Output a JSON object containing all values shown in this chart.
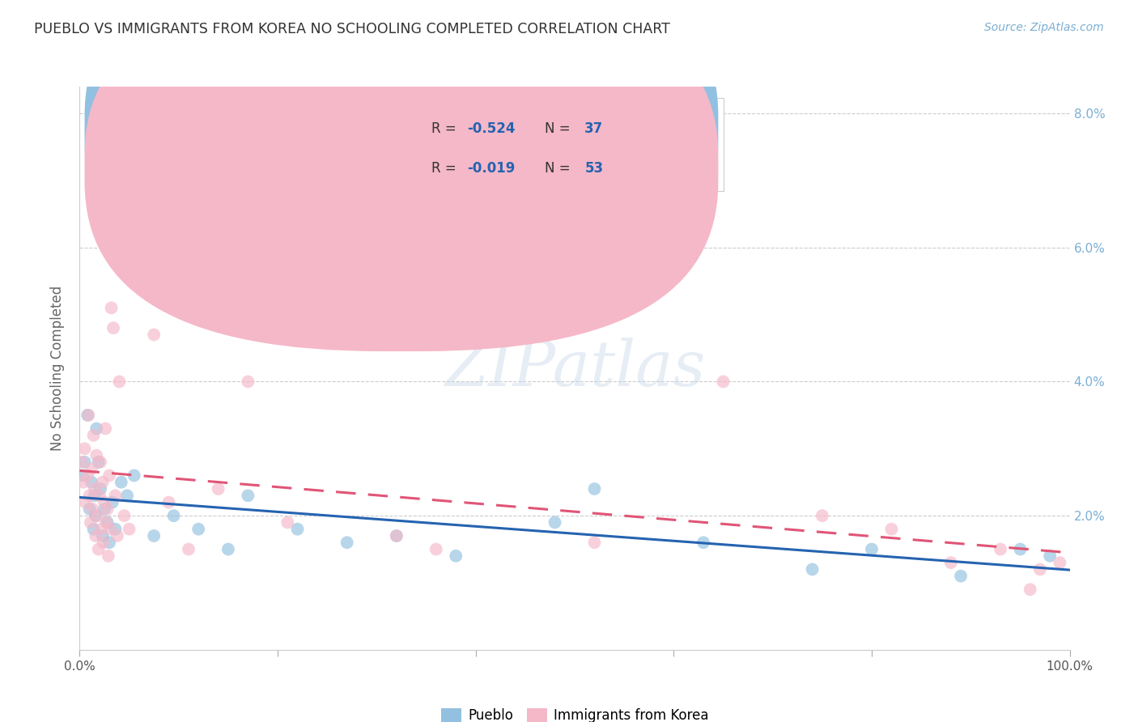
{
  "title": "PUEBLO VS IMMIGRANTS FROM KOREA NO SCHOOLING COMPLETED CORRELATION CHART",
  "source": "Source: ZipAtlas.com",
  "ylabel": "No Schooling Completed",
  "xlim": [
    0,
    100
  ],
  "ylim": [
    0,
    8.4
  ],
  "yticks": [
    2,
    4,
    6,
    8
  ],
  "ytick_labels_right": [
    "2.0%",
    "4.0%",
    "6.0%",
    "8.0%"
  ],
  "xticks": [
    0,
    20,
    40,
    60,
    80,
    100
  ],
  "xtick_labels": [
    "0.0%",
    "",
    "",
    "",
    "",
    "100.0%"
  ],
  "pueblo_R": "-0.524",
  "pueblo_N": "37",
  "korea_R": "-0.019",
  "korea_N": "53",
  "pueblo_color": "#92c0e0",
  "korea_color": "#f5b8c8",
  "pueblo_line_color": "#2563b0",
  "korea_line_color": "#e05575",
  "grid_color": "#cccccc",
  "bg_color": "#ffffff",
  "watermark_text": "ZIPatlas",
  "legend_label_color": "#333333",
  "legend_value_color": "#2563b0",
  "title_color": "#333333",
  "source_color": "#7bafd4",
  "ylabel_color": "#666666",
  "tick_label_color": "#555555",
  "right_tick_color": "#7bafd4",
  "pueblo_x": [
    0.3,
    0.5,
    0.8,
    1.0,
    1.2,
    1.4,
    1.5,
    1.6,
    1.7,
    1.9,
    2.1,
    2.3,
    2.5,
    2.8,
    3.0,
    3.3,
    3.6,
    4.2,
    4.8,
    5.5,
    7.5,
    9.5,
    12.0,
    15.0,
    17.0,
    22.0,
    27.0,
    32.0,
    38.0,
    48.0,
    52.0,
    63.0,
    74.0,
    80.0,
    89.0,
    95.0,
    98.0
  ],
  "pueblo_y": [
    2.6,
    2.8,
    3.5,
    2.1,
    2.5,
    1.8,
    2.3,
    2.0,
    3.3,
    2.8,
    2.4,
    1.7,
    2.1,
    1.9,
    1.6,
    2.2,
    1.8,
    2.5,
    2.3,
    2.6,
    1.7,
    2.0,
    1.8,
    1.5,
    2.3,
    1.8,
    1.6,
    1.7,
    1.4,
    1.9,
    2.4,
    1.6,
    1.2,
    1.5,
    1.1,
    1.5,
    1.4
  ],
  "korea_x": [
    0.2,
    0.4,
    0.5,
    0.6,
    0.8,
    0.9,
    1.0,
    1.1,
    1.2,
    1.3,
    1.4,
    1.5,
    1.6,
    1.7,
    1.8,
    1.9,
    2.0,
    2.1,
    2.2,
    2.3,
    2.4,
    2.5,
    2.6,
    2.7,
    2.8,
    2.9,
    3.0,
    3.1,
    3.2,
    3.4,
    3.6,
    3.8,
    4.0,
    4.5,
    5.0,
    6.0,
    7.5,
    9.0,
    11.0,
    14.0,
    17.0,
    21.0,
    32.0,
    36.0,
    52.0,
    65.0,
    75.0,
    82.0,
    88.0,
    93.0,
    96.0,
    97.0,
    99.0
  ],
  "korea_y": [
    2.8,
    2.5,
    3.0,
    2.2,
    2.6,
    3.5,
    2.3,
    1.9,
    2.7,
    2.1,
    3.2,
    2.4,
    1.7,
    2.9,
    2.0,
    1.5,
    2.3,
    2.8,
    1.8,
    2.5,
    1.6,
    2.2,
    3.3,
    1.9,
    2.1,
    1.4,
    2.6,
    1.8,
    5.1,
    4.8,
    2.3,
    1.7,
    4.0,
    2.0,
    1.8,
    6.9,
    4.7,
    2.2,
    1.5,
    2.4,
    4.0,
    1.9,
    1.7,
    1.5,
    1.6,
    4.0,
    2.0,
    1.8,
    1.3,
    1.5,
    0.9,
    1.2,
    1.3
  ]
}
